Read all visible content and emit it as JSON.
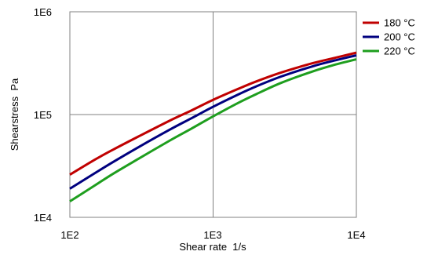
{
  "chart_data": {
    "type": "line",
    "x_scale": "log",
    "y_scale": "log",
    "xlim": [
      100,
      10000
    ],
    "ylim": [
      10000,
      1000000
    ],
    "grid": true,
    "legend_position": "top-right",
    "x_ticks": [
      "1E2",
      "1E3",
      "1E4"
    ],
    "y_ticks": [
      "1E4",
      "1E5",
      "1E6"
    ],
    "xlabel": "Shear rate  1/s",
    "ylabel": "Shearstress  Pa",
    "x": [
      100,
      150,
      200,
      300,
      500,
      700,
      1000,
      1500,
      2000,
      3000,
      5000,
      7000,
      10000
    ],
    "series": [
      {
        "name": "180 °C",
        "color": "#c00000",
        "values": [
          26000,
          36500,
          45500,
          61000,
          87500,
          109000,
          139000,
          178000,
          210000,
          257000,
          317000,
          355000,
          400000
        ]
      },
      {
        "name": "200 °C",
        "color": "#00007f",
        "values": [
          19000,
          27000,
          34500,
          48000,
          71500,
          91500,
          119000,
          157000,
          188000,
          235000,
          296000,
          335000,
          377000
        ]
      },
      {
        "name": "220 °C",
        "color": "#1e9e1e",
        "values": [
          14300,
          20500,
          26500,
          37000,
          56000,
          72500,
          96000,
          130000,
          158000,
          204000,
          264000,
          304000,
          345000
        ]
      }
    ]
  }
}
